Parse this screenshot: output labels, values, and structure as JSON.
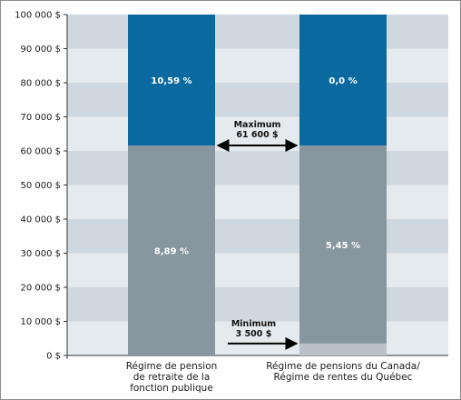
{
  "chart_data": {
    "type": "bar",
    "stacked": true,
    "categories": [
      [
        "Régime de pension",
        "de retraite de la",
        "fonction publique"
      ],
      [
        "Régime de pensions du Canada/",
        "Régime de rentes du Québec"
      ]
    ],
    "ylim": [
      0,
      100000
    ],
    "yticks": [
      "0 $",
      "10 000 $",
      "20 000 $",
      "30 000 $",
      "40 000 $",
      "50 000 $",
      "60 000 $",
      "70 000 $",
      "80 000 $",
      "90 000 $",
      "100 000 $"
    ],
    "tick_values": [
      0,
      10000,
      20000,
      30000,
      40000,
      50000,
      60000,
      70000,
      80000,
      90000,
      100000
    ],
    "segments": [
      [
        {
          "from": 0,
          "to": 61600,
          "label": "8,89 %"
        },
        {
          "from": 61600,
          "to": 100000,
          "label": "10,59 %"
        }
      ],
      [
        {
          "from": 0,
          "to": 3500,
          "label": ""
        },
        {
          "from": 3500,
          "to": 61600,
          "label": "5,45 %"
        },
        {
          "from": 61600,
          "to": 100000,
          "label": "0,0 %"
        }
      ]
    ],
    "annotations": [
      {
        "lines": [
          "Maximum",
          "61 600 $"
        ],
        "value": 61600,
        "arrow": "double"
      },
      {
        "lines": [
          "Minimum",
          "3 500 $"
        ],
        "value": 3500,
        "arrow": "right"
      }
    ],
    "colors": {
      "lower": "#8896a0",
      "upper": "#0a6aa0",
      "exempt": "#b9c2c8",
      "band_light": "#e4eaee",
      "band_dark": "#cfd8de"
    }
  }
}
